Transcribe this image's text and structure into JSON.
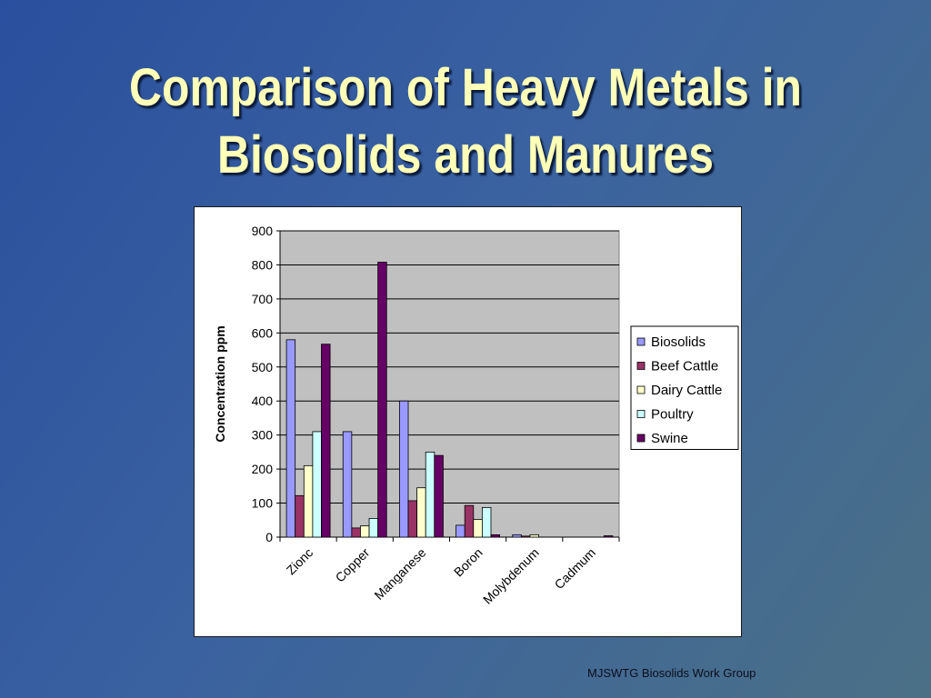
{
  "slide": {
    "title_line1": "Comparison of Heavy Metals in",
    "title_line2": "Biosolids and Manures",
    "footer": "MJSWTG Biosolids Work Group"
  },
  "chart_data": {
    "type": "bar",
    "title": "",
    "xlabel": "",
    "ylabel": "Concentration ppm",
    "ylim": [
      0,
      900
    ],
    "yticks": [
      0,
      100,
      200,
      300,
      400,
      500,
      600,
      700,
      800,
      900
    ],
    "grid": true,
    "legend_position": "right",
    "categories": [
      "Zionc",
      "Copper",
      "Manganese",
      "Boron",
      "Molybdenum",
      "Cadmum"
    ],
    "series": [
      {
        "name": "Biosolids",
        "color": "#9999ff",
        "values": [
          580,
          310,
          400,
          35,
          7,
          0
        ]
      },
      {
        "name": "Beef Cattle",
        "color": "#993366",
        "values": [
          122,
          27,
          107,
          93,
          3,
          0
        ]
      },
      {
        "name": "Dairy Cattle",
        "color": "#ffffcc",
        "values": [
          210,
          33,
          145,
          52,
          7,
          0
        ]
      },
      {
        "name": "Poultry",
        "color": "#ccffff",
        "values": [
          310,
          55,
          250,
          87,
          0,
          0
        ]
      },
      {
        "name": "Swine",
        "color": "#660066",
        "values": [
          567,
          808,
          240,
          7,
          0,
          4
        ]
      }
    ]
  }
}
